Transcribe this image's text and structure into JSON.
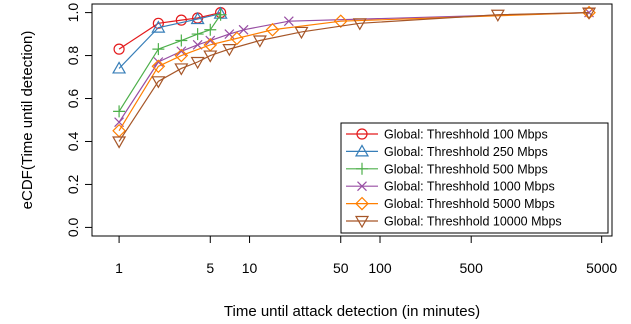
{
  "chart_data": {
    "type": "line",
    "title": "",
    "xlabel": "Time until attack detection (in minutes)",
    "ylabel": "eCDF(Time until detection)",
    "x_scale": "log",
    "xlim": [
      0.62,
      6000
    ],
    "ylim": [
      -0.04,
      1.04
    ],
    "x_ticks": [
      1,
      5,
      10,
      50,
      100,
      500,
      5000
    ],
    "x_tick_labels": [
      "1",
      "5",
      "10",
      "50",
      "100",
      "500",
      "5000"
    ],
    "y_ticks": [
      0,
      0.2,
      0.4,
      0.6,
      0.8,
      1
    ],
    "y_tick_labels": [
      "0.0",
      "0.2",
      "0.4",
      "0.6",
      "0.8",
      "1.0"
    ],
    "grid": false,
    "legend_position": "bottom-right",
    "series": [
      {
        "name": "Global: Threshhold 100 Mbps",
        "color": "#e41a1c",
        "marker": "circle",
        "points": [
          [
            1,
            0.83
          ],
          [
            2,
            0.95
          ],
          [
            3,
            0.965
          ],
          [
            4,
            0.975
          ],
          [
            6,
            1.0
          ]
        ]
      },
      {
        "name": "Global: Threshhold 250 Mbps",
        "color": "#377eb8",
        "marker": "triangle-up",
        "points": [
          [
            1,
            0.74
          ],
          [
            2,
            0.93
          ],
          [
            4,
            0.97
          ],
          [
            6,
            0.995
          ]
        ]
      },
      {
        "name": "Global: Threshhold 500 Mbps",
        "color": "#4daf4a",
        "marker": "plus",
        "points": [
          [
            1,
            0.54
          ],
          [
            2,
            0.83
          ],
          [
            3,
            0.87
          ],
          [
            4,
            0.9
          ],
          [
            5,
            0.92
          ],
          [
            6,
            0.99
          ]
        ]
      },
      {
        "name": "Global: Threshhold 1000 Mbps",
        "color": "#984ea3",
        "marker": "x",
        "points": [
          [
            1,
            0.49
          ],
          [
            2,
            0.77
          ],
          [
            3,
            0.82
          ],
          [
            4,
            0.85
          ],
          [
            5,
            0.87
          ],
          [
            7,
            0.9
          ],
          [
            9,
            0.92
          ],
          [
            20,
            0.96
          ],
          [
            4000,
            1.0
          ]
        ]
      },
      {
        "name": "Global: Threshhold 5000 Mbps",
        "color": "#ff7f00",
        "marker": "diamond",
        "points": [
          [
            1,
            0.45
          ],
          [
            2,
            0.75
          ],
          [
            3,
            0.8
          ],
          [
            5,
            0.85
          ],
          [
            8,
            0.88
          ],
          [
            15,
            0.92
          ],
          [
            50,
            0.96
          ],
          [
            4000,
            1.0
          ]
        ]
      },
      {
        "name": "Global: Threshhold 10000 Mbps",
        "color": "#a65628",
        "marker": "triangle-down",
        "points": [
          [
            1,
            0.4
          ],
          [
            2,
            0.68
          ],
          [
            3,
            0.74
          ],
          [
            4,
            0.77
          ],
          [
            5,
            0.8
          ],
          [
            7,
            0.83
          ],
          [
            12,
            0.87
          ],
          [
            25,
            0.91
          ],
          [
            70,
            0.95
          ],
          [
            800,
            0.99
          ],
          [
            4000,
            1.0
          ]
        ]
      }
    ]
  }
}
